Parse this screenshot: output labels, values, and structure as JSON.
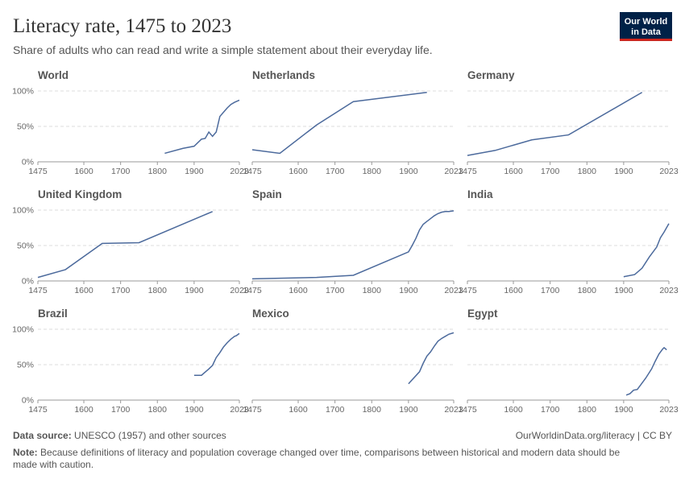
{
  "header": {
    "title": "Literacy rate, 1475 to 2023",
    "subtitle": "Share of adults who can read and write a simple statement about their everyday life.",
    "logo": [
      "Our World",
      "in Data"
    ]
  },
  "footer": {
    "source_label": "Data source:",
    "source": "UNESCO (1957) and other sources",
    "url": "OurWorldinData.org/literacy | CC BY",
    "note_label": "Note:",
    "note": [
      "Because definitions of literacy and population coverage changed over time, comparisons between historical and modern data should be",
      "made with caution."
    ]
  },
  "chart_data": [
    {
      "type": "line",
      "title": "World",
      "color": "#4c6a9c",
      "x": [
        1820,
        1870,
        1900,
        1920,
        1930,
        1940,
        1950,
        1960,
        1970,
        1980,
        1990,
        2000,
        2010,
        2023
      ],
      "values": [
        12,
        19,
        22,
        32,
        33,
        42,
        36,
        42,
        64,
        70,
        76,
        81,
        84,
        87
      ],
      "xlim": [
        1475,
        2023
      ],
      "xticks": [
        1475,
        1600,
        1700,
        1800,
        1900,
        2023
      ],
      "ylim": [
        0,
        100
      ],
      "yticks": [
        {
          "value": 0,
          "label": "0%"
        },
        {
          "value": 50,
          "label": "50%"
        },
        {
          "value": 100,
          "label": "100%"
        }
      ]
    },
    {
      "type": "line",
      "title": "Netherlands",
      "color": "#4c6a9c",
      "x": [
        1475,
        1550,
        1650,
        1750,
        1950
      ],
      "values": [
        17,
        12,
        52,
        85,
        98
      ],
      "xlim": [
        1475,
        2023
      ],
      "xticks": [
        1475,
        1600,
        1700,
        1800,
        1900,
        2023
      ],
      "ylim": [
        0,
        100
      ],
      "yticks": [
        0,
        50,
        100
      ]
    },
    {
      "type": "line",
      "title": "Germany",
      "color": "#4c6a9c",
      "x": [
        1475,
        1550,
        1650,
        1750,
        1950
      ],
      "values": [
        9,
        16,
        31,
        38,
        98
      ],
      "xlim": [
        1475,
        2023
      ],
      "xticks": [
        1475,
        1600,
        1700,
        1800,
        1900,
        2023
      ],
      "ylim": [
        0,
        100
      ],
      "yticks": [
        0,
        50,
        100
      ]
    },
    {
      "type": "line",
      "title": "United Kingdom",
      "color": "#4c6a9c",
      "x": [
        1475,
        1550,
        1650,
        1750,
        1950
      ],
      "values": [
        5,
        16,
        53,
        54,
        98
      ],
      "xlim": [
        1475,
        2023
      ],
      "xticks": [
        1475,
        1600,
        1700,
        1800,
        1900,
        2023
      ],
      "ylim": [
        0,
        100
      ],
      "yticks": [
        {
          "value": 0,
          "label": "0%"
        },
        {
          "value": 50,
          "label": "50%"
        },
        {
          "value": 100,
          "label": "100%"
        }
      ]
    },
    {
      "type": "line",
      "title": "Spain",
      "color": "#4c6a9c",
      "x": [
        1475,
        1650,
        1750,
        1900,
        1910,
        1920,
        1930,
        1940,
        1950,
        1960,
        1970,
        1980,
        1990,
        2000,
        2010,
        2023
      ],
      "values": [
        3,
        5,
        8,
        41,
        50,
        60,
        72,
        80,
        84,
        88,
        92,
        95,
        97,
        98,
        98,
        99
      ],
      "xlim": [
        1475,
        2023
      ],
      "xticks": [
        1475,
        1600,
        1700,
        1800,
        1900,
        2023
      ],
      "ylim": [
        0,
        100
      ],
      "yticks": [
        0,
        50,
        100
      ]
    },
    {
      "type": "line",
      "title": "India",
      "color": "#4c6a9c",
      "x": [
        1900,
        1930,
        1950,
        1970,
        1980,
        1990,
        2000,
        2010,
        2023
      ],
      "values": [
        6,
        9,
        18,
        34,
        41,
        48,
        61,
        69,
        81
      ],
      "xlim": [
        1475,
        2023
      ],
      "xticks": [
        1475,
        1600,
        1700,
        1800,
        1900,
        2023
      ],
      "ylim": [
        0,
        100
      ],
      "yticks": [
        0,
        50,
        100
      ]
    },
    {
      "type": "line",
      "title": "Brazil",
      "color": "#4c6a9c",
      "x": [
        1900,
        1920,
        1940,
        1950,
        1960,
        1970,
        1980,
        1990,
        2000,
        2010,
        2015,
        2023
      ],
      "values": [
        35,
        35,
        44,
        49,
        60,
        67,
        75,
        81,
        86,
        90,
        91,
        94
      ],
      "xlim": [
        1475,
        2023
      ],
      "xticks": [
        1475,
        1600,
        1700,
        1800,
        1900,
        2023
      ],
      "ylim": [
        0,
        100
      ],
      "yticks": [
        {
          "value": 0,
          "label": "0%"
        },
        {
          "value": 50,
          "label": "50%"
        },
        {
          "value": 100,
          "label": "100%"
        }
      ]
    },
    {
      "type": "line",
      "title": "Mexico",
      "color": "#4c6a9c",
      "x": [
        1900,
        1930,
        1940,
        1950,
        1960,
        1970,
        1980,
        1990,
        2000,
        2010,
        2023
      ],
      "values": [
        23,
        40,
        52,
        62,
        68,
        76,
        83,
        87,
        90,
        93,
        95
      ],
      "xlim": [
        1475,
        2023
      ],
      "xticks": [
        1475,
        1600,
        1700,
        1800,
        1900,
        2023
      ],
      "ylim": [
        0,
        100
      ],
      "yticks": [
        0,
        50,
        100
      ]
    },
    {
      "type": "line",
      "title": "Egypt",
      "color": "#4c6a9c",
      "x": [
        1907,
        1917,
        1927,
        1937,
        1947,
        1960,
        1976,
        1986,
        1996,
        2006,
        2010,
        2017
      ],
      "values": [
        7,
        9,
        14,
        15,
        22,
        31,
        44,
        55,
        65,
        72,
        74,
        71
      ],
      "xlim": [
        1475,
        2023
      ],
      "xticks": [
        1475,
        1600,
        1700,
        1800,
        1900,
        2023
      ],
      "ylim": [
        0,
        100
      ],
      "yticks": [
        0,
        50,
        100
      ]
    }
  ]
}
